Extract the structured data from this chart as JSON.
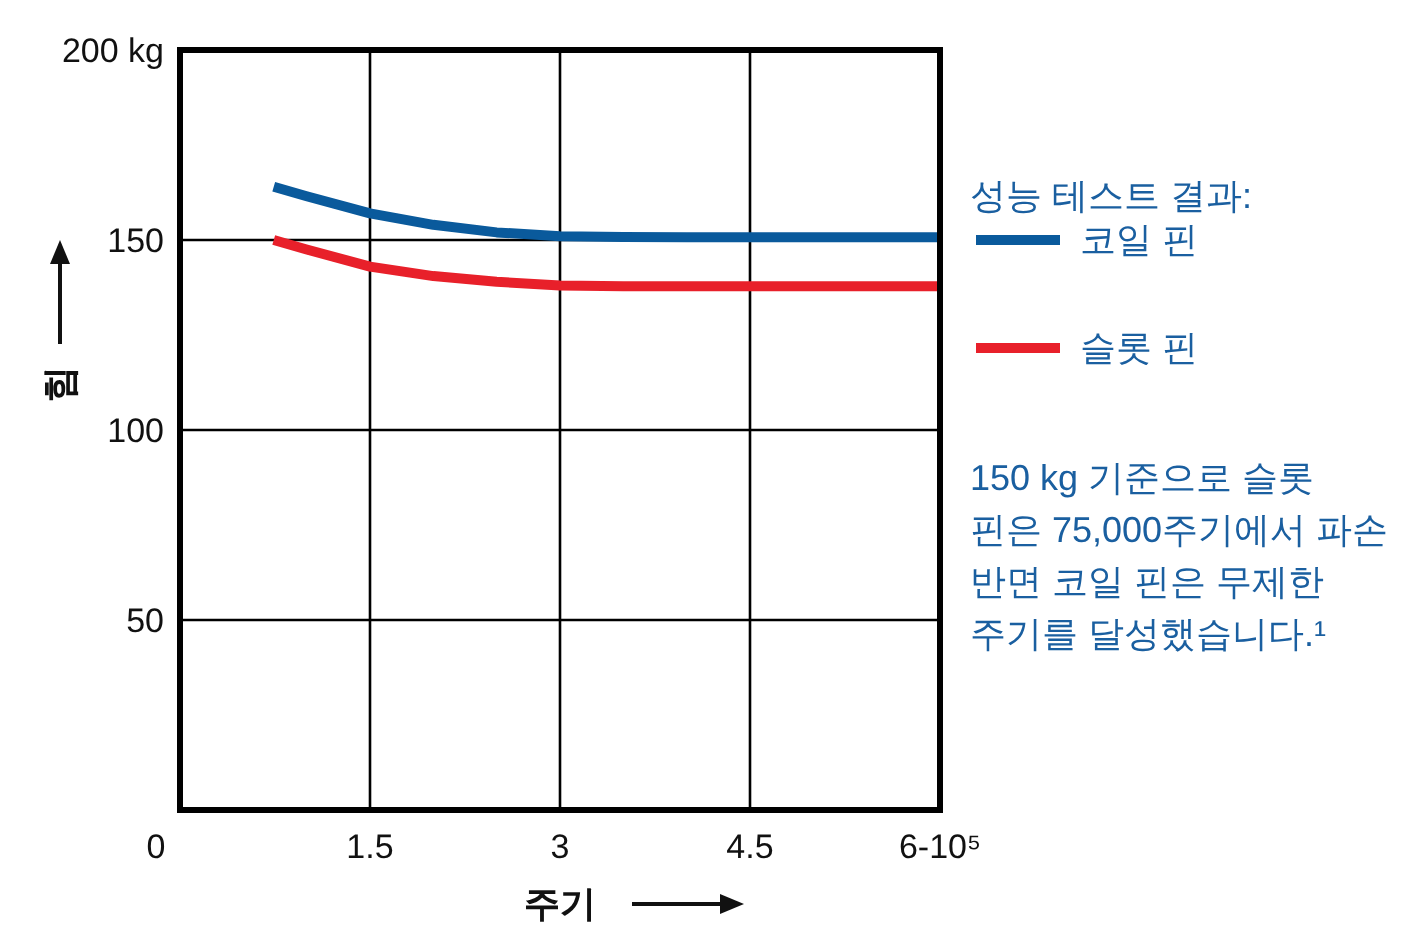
{
  "chart_data": {
    "type": "line",
    "xlabel": "주기",
    "ylabel": "힘",
    "legend_title": "성능 테스트 결과:",
    "annotations": [
      "150 kg 기준으로 슬롯 핀은 75,000주기에서 파손 반면 코일 핀은 무제한 주기를 달성했습니다.¹"
    ],
    "xlim": [
      0,
      6
    ],
    "ylim": [
      0,
      200
    ],
    "xticks": [
      0,
      1.5,
      3,
      4.5,
      {
        "value": 6,
        "label": "6-10⁵"
      }
    ],
    "yticks": [
      50,
      100,
      150,
      {
        "value": 200,
        "label": "200 kg"
      }
    ],
    "grid": true,
    "legend": "right",
    "series": [
      {
        "name": "코일 핀",
        "color": "#0a5a9c",
        "x": [
          0.74,
          1.0,
          1.5,
          2.0,
          2.5,
          3.0,
          3.5,
          4.0,
          6.0
        ],
        "values": [
          164,
          161.5,
          157,
          154,
          152,
          151,
          150.8,
          150.7,
          150.7
        ]
      },
      {
        "name": "슬롯 핀",
        "color": "#e8202a",
        "x": [
          0.74,
          1.0,
          1.5,
          2.0,
          2.5,
          3.0,
          3.5,
          6.0
        ],
        "values": [
          150,
          147.5,
          143,
          140.5,
          139,
          138,
          137.8,
          137.8
        ]
      }
    ]
  }
}
